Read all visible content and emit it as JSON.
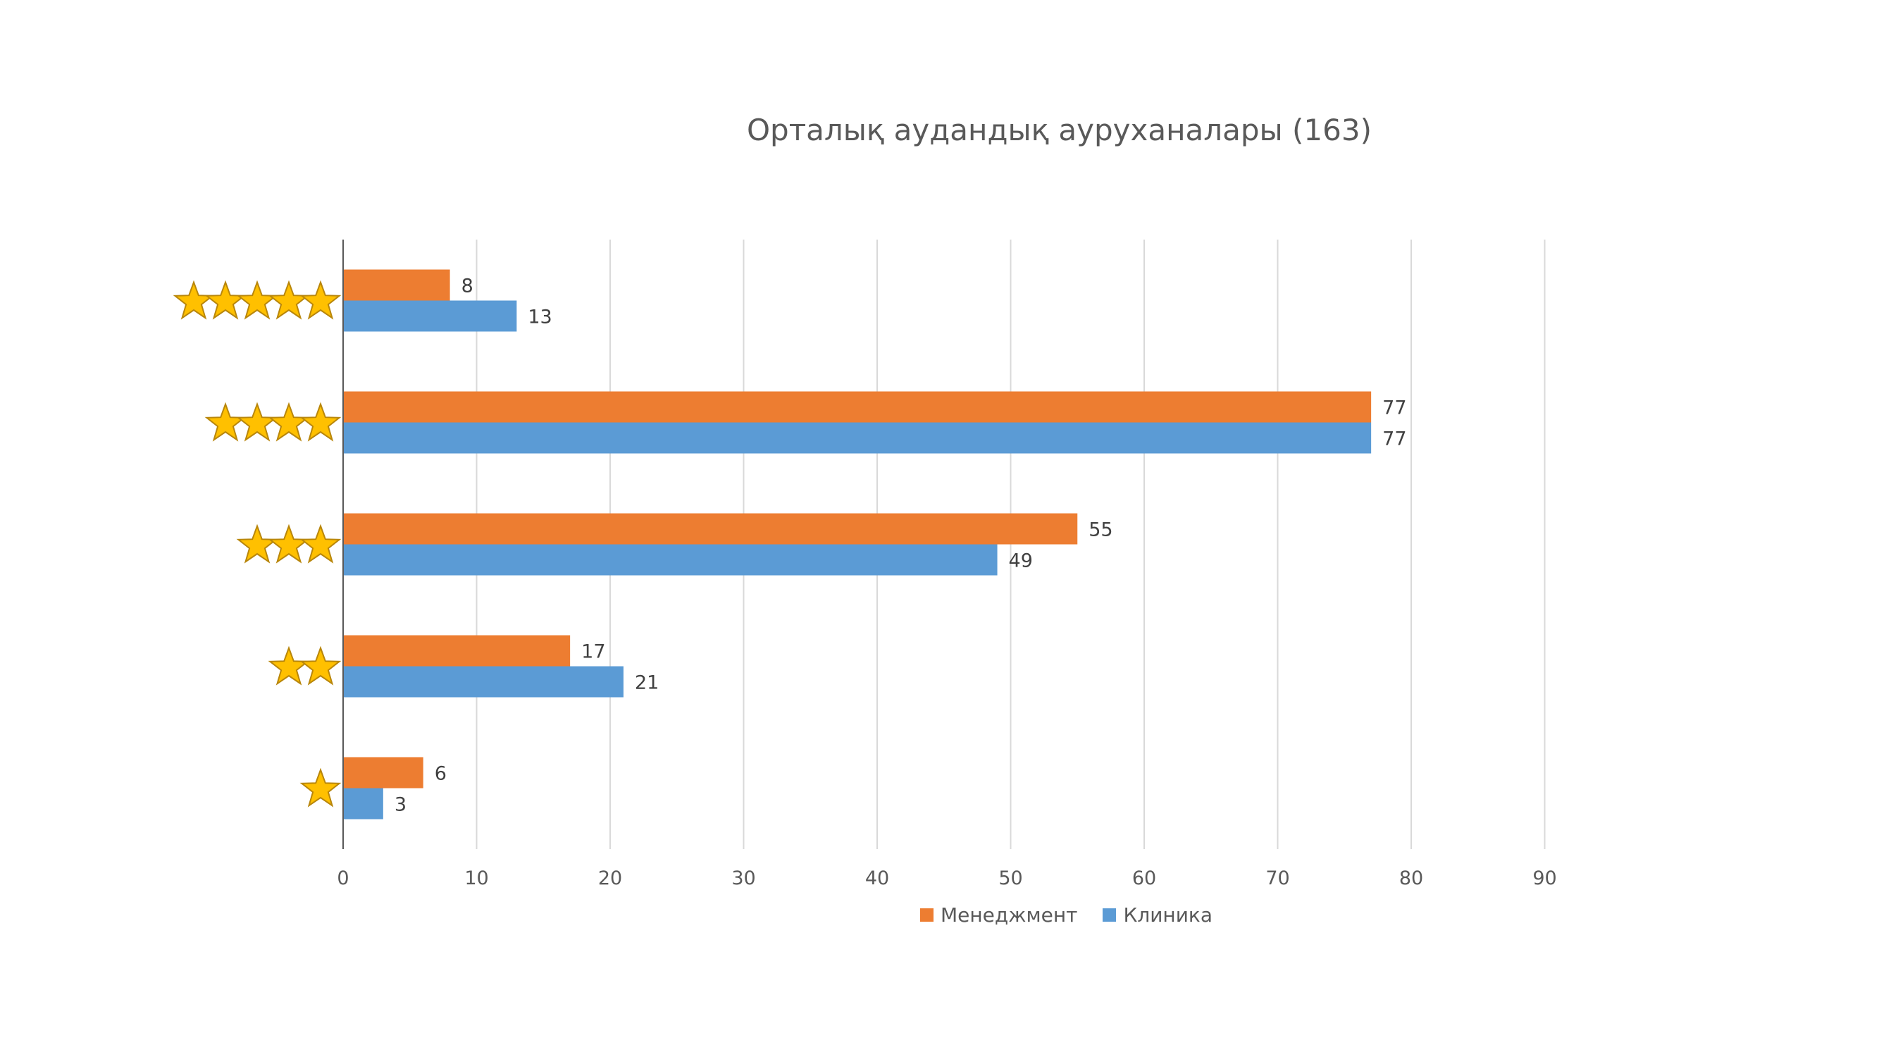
{
  "chart_data": {
    "type": "bar",
    "orientation": "horizontal",
    "title": "Орталық аудандық ауруханалары (163)",
    "categories": [
      "★★★★★",
      "★★★★",
      "★★★",
      "★★",
      "★"
    ],
    "category_star_counts": [
      5,
      4,
      3,
      2,
      1
    ],
    "series": [
      {
        "name": "Менеджмент",
        "color": "#ED7D31",
        "values": [
          8,
          77,
          55,
          17,
          6
        ]
      },
      {
        "name": "Клиника",
        "color": "#5B9BD5",
        "values": [
          13,
          77,
          49,
          21,
          3
        ]
      }
    ],
    "xlim": [
      0,
      90
    ],
    "x_ticks": [
      0,
      10,
      20,
      30,
      40,
      50,
      60,
      70,
      80,
      90
    ],
    "grid": "vertical",
    "legend_position": "bottom",
    "star_color": "#FFC000",
    "star_outline": "#B8860B"
  }
}
